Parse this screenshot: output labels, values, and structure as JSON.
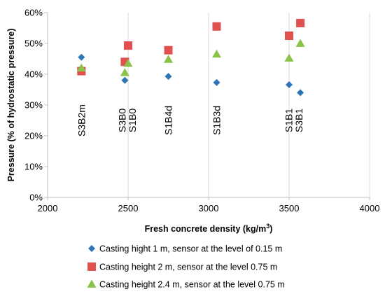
{
  "chart_data": {
    "type": "scatter",
    "xlabel": "Fresh concrete density (kg/m",
    "xlabel_sup": "3",
    "xlabel_tail": ")",
    "ylabel": "Pressure (% of hydrostatic pressure)",
    "xlim": [
      2000,
      4000
    ],
    "ylim": [
      0,
      60
    ],
    "x_ticks": [
      2000,
      2500,
      3000,
      3500,
      4000
    ],
    "y_ticks": [
      0,
      10,
      20,
      30,
      40,
      50,
      60
    ],
    "y_tick_suffix": "%",
    "grid": "vertical",
    "legend_position": "bottom",
    "series": [
      {
        "name": "Casting hight 1 m, sensor at the level of 0.15 m",
        "marker": "diamond",
        "color": "#2E75B6",
        "points": [
          {
            "x": 2210,
            "y": 45.5
          },
          {
            "x": 2480,
            "y": 38
          },
          {
            "x": 2750,
            "y": 39.3
          },
          {
            "x": 3050,
            "y": 37.3
          },
          {
            "x": 3500,
            "y": 36.6
          },
          {
            "x": 3570,
            "y": 34
          }
        ]
      },
      {
        "name": "Casting height 2 m, sensor at the level 0.75 m",
        "marker": "square",
        "color": "#E0514F",
        "points": [
          {
            "x": 2210,
            "y": 41
          },
          {
            "x": 2480,
            "y": 44
          },
          {
            "x": 2500,
            "y": 49.3
          },
          {
            "x": 2750,
            "y": 47.8
          },
          {
            "x": 3050,
            "y": 55.5
          },
          {
            "x": 3500,
            "y": 52.5
          },
          {
            "x": 3570,
            "y": 56.6
          }
        ]
      },
      {
        "name": "Casting height 2.4 m, sensor at the level 0.75 m",
        "marker": "triangle",
        "color": "#8BC34A",
        "points": [
          {
            "x": 2210,
            "y": 42
          },
          {
            "x": 2480,
            "y": 40.5
          },
          {
            "x": 2500,
            "y": 43.5
          },
          {
            "x": 2750,
            "y": 44.8
          },
          {
            "x": 3050,
            "y": 46.5
          },
          {
            "x": 3500,
            "y": 45.2
          },
          {
            "x": 3570,
            "y": 50
          }
        ]
      }
    ],
    "annotations": [
      {
        "text": "S3B2m",
        "x": 2210,
        "y": 25
      },
      {
        "text": "S3B0",
        "x": 2462,
        "y": 25
      },
      {
        "text": "S1B0",
        "x": 2525,
        "y": 25
      },
      {
        "text": "S1B4d",
        "x": 2750,
        "y": 25
      },
      {
        "text": "S1B3d",
        "x": 3050,
        "y": 25
      },
      {
        "text": "S1B1",
        "x": 3497,
        "y": 25
      },
      {
        "text": "S3B1",
        "x": 3560,
        "y": 25
      }
    ]
  }
}
